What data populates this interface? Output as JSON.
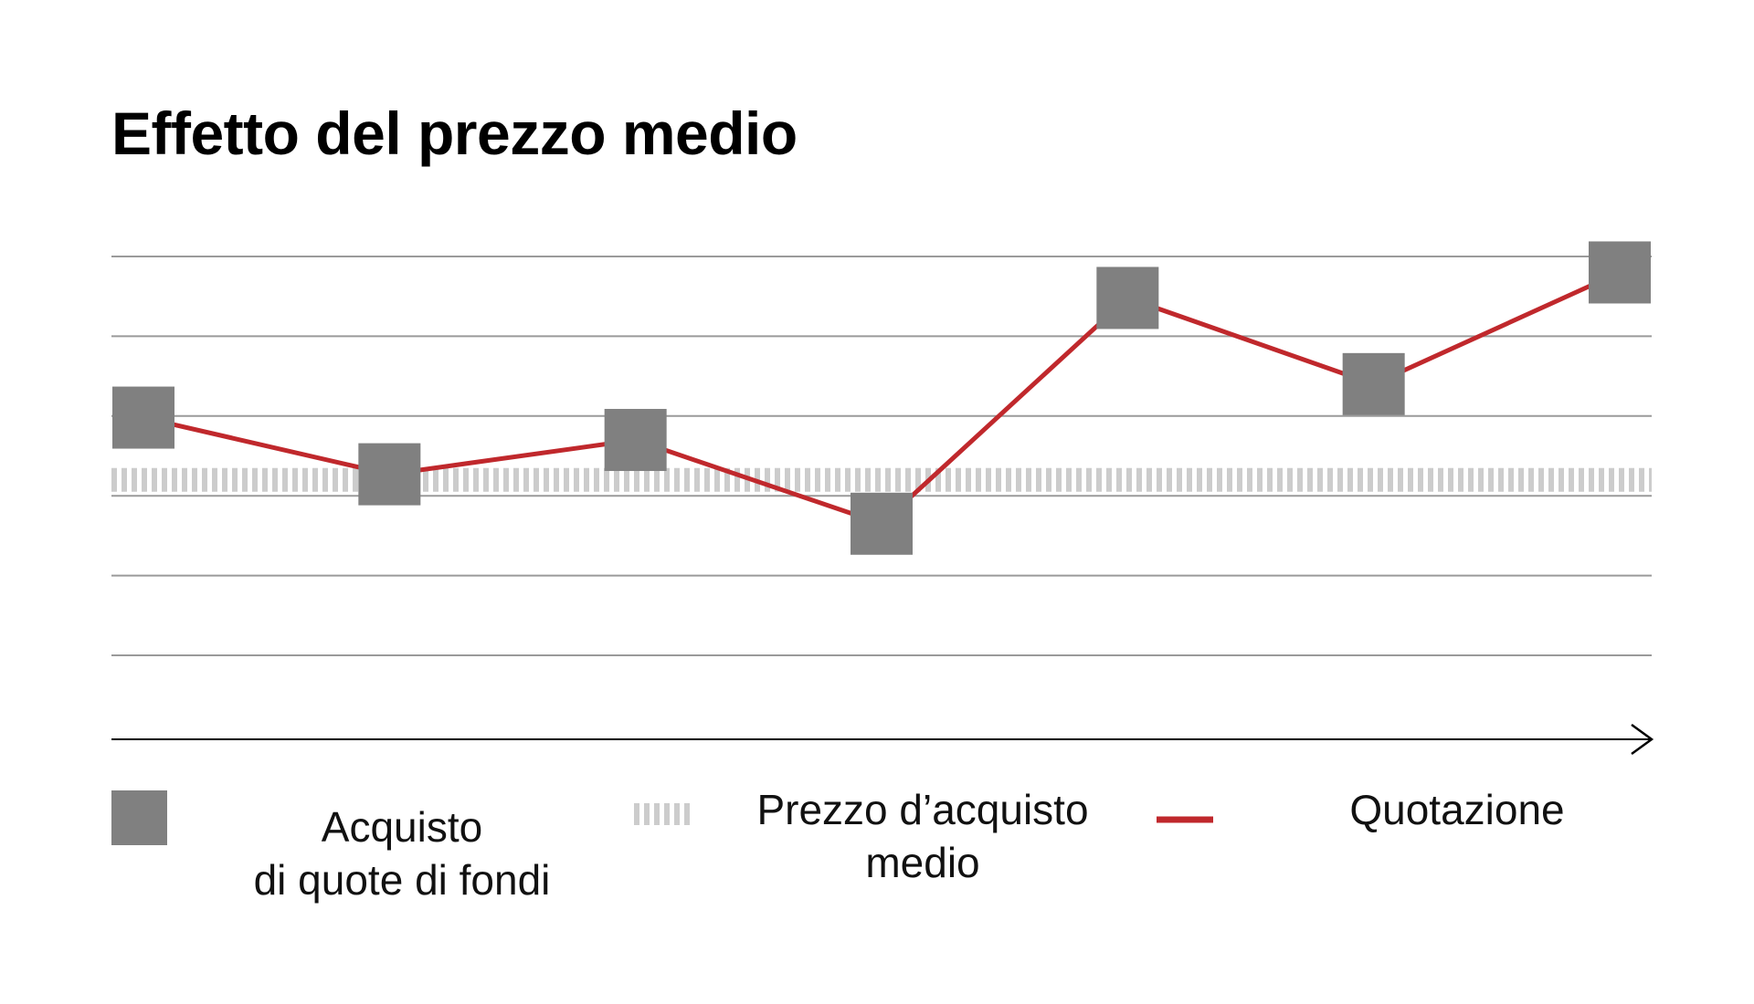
{
  "chart_data": {
    "type": "line",
    "title": "Effetto del prezzo medio",
    "xlabel": "",
    "ylabel": "",
    "ylim": [
      0,
      6
    ],
    "y_gridlines": [
      1,
      2,
      3,
      4,
      5,
      6
    ],
    "grid": true,
    "x": [
      1,
      2,
      3,
      4,
      5,
      6,
      7
    ],
    "series": [
      {
        "name": "Quotazione",
        "kind": "line",
        "color": "#c0282c",
        "values": [
          3.98,
          3.27,
          3.7,
          2.65,
          5.48,
          4.4,
          5.8
        ]
      },
      {
        "name": "Acquisto di quote di fondi",
        "kind": "markers",
        "marker": "square",
        "color": "#808080",
        "values": [
          3.98,
          3.27,
          3.7,
          2.65,
          5.48,
          4.4,
          5.8
        ]
      },
      {
        "name": "Prezzo d’acquisto medio",
        "kind": "reference-line",
        "style": "dotted",
        "color": "#cccccc",
        "value": 3.2
      }
    ],
    "legend": {
      "placement": "bottom",
      "entries": [
        {
          "lines": [
            "Acquisto",
            "di quote di fondi"
          ],
          "swatch": "square",
          "color": "#808080"
        },
        {
          "lines": [
            "Prezzo d’acquisto",
            "medio"
          ],
          "swatch": "dotted",
          "color": "#cccccc"
        },
        {
          "lines": [
            "Quotazione"
          ],
          "swatch": "line",
          "color": "#c0282c"
        }
      ]
    },
    "colors": {
      "gridline": "#9a9a9a",
      "axis": "#000000",
      "line": "#c0282c",
      "marker": "#808080",
      "average": "#cccccc"
    }
  }
}
